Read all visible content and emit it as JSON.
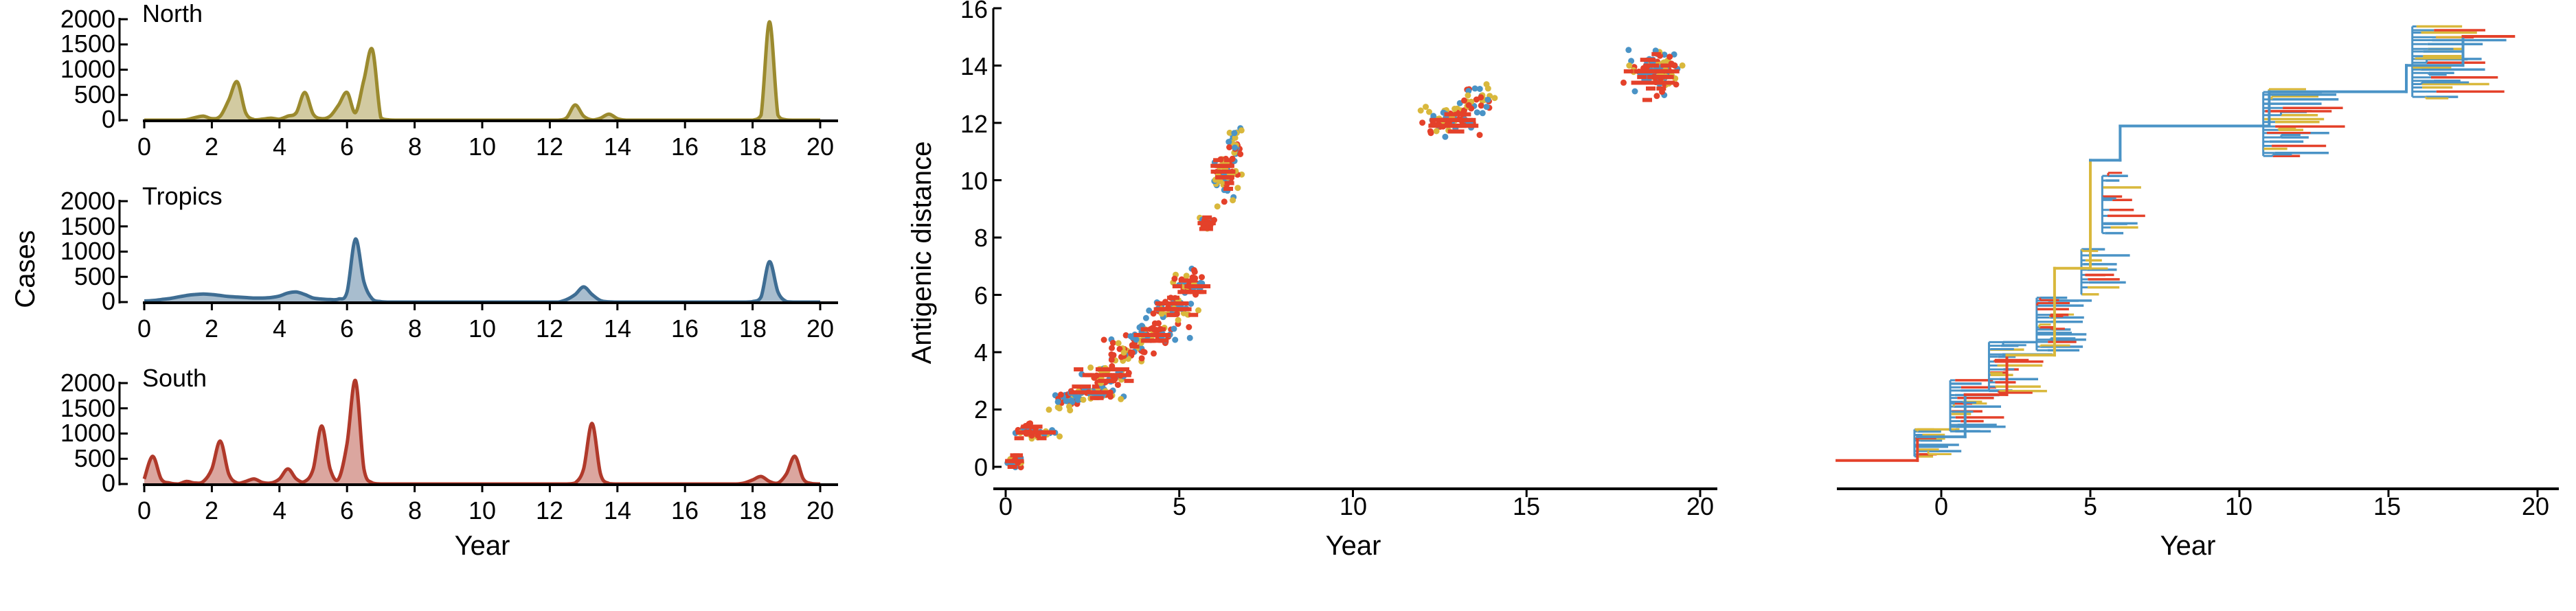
{
  "colors": {
    "north": "#9b8a2e",
    "tropics": "#3e6d93",
    "south": "#b0392a",
    "tree_blue": "#4a93c6",
    "tree_red": "#e4412a",
    "tree_yellow": "#d9b83c"
  },
  "chart_data": [
    {
      "type": "area",
      "panel": "North",
      "title": "North",
      "xlabel": "",
      "ylabel": "Cases",
      "xlim": [
        0,
        20
      ],
      "ylim": [
        0,
        2000
      ],
      "xticks": [
        "0",
        "2",
        "4",
        "6",
        "8",
        "10",
        "12",
        "14",
        "16",
        "18",
        "20"
      ],
      "yticks": [
        "0",
        "500",
        "1000",
        "1500",
        "2000"
      ],
      "x": [
        0.0,
        0.25,
        0.5,
        0.75,
        1.0,
        1.25,
        1.5,
        1.75,
        2.0,
        2.25,
        2.5,
        2.75,
        3.0,
        3.25,
        3.5,
        3.75,
        4.0,
        4.25,
        4.5,
        4.75,
        5.0,
        5.25,
        5.5,
        5.75,
        6.0,
        6.25,
        6.5,
        6.75,
        7.0,
        7.25,
        7.5,
        7.75,
        8.0,
        8.25,
        8.5,
        8.75,
        9.0,
        9.25,
        9.5,
        9.75,
        10.0,
        10.25,
        10.5,
        10.75,
        11.0,
        11.25,
        11.5,
        11.75,
        12.0,
        12.25,
        12.5,
        12.75,
        13.0,
        13.25,
        13.5,
        13.75,
        14.0,
        14.25,
        14.5,
        14.75,
        15.0,
        15.25,
        15.5,
        15.75,
        16.0,
        16.25,
        16.5,
        16.75,
        17.0,
        17.25,
        17.5,
        17.75,
        18.0,
        18.25,
        18.5,
        18.75,
        19.0,
        19.25,
        19.5,
        19.75,
        20.0
      ],
      "values": [
        0,
        0,
        0,
        0,
        0,
        10,
        50,
        80,
        30,
        80,
        400,
        760,
        150,
        10,
        20,
        40,
        20,
        80,
        150,
        550,
        120,
        30,
        80,
        300,
        550,
        150,
        800,
        1400,
        50,
        5,
        0,
        0,
        0,
        0,
        0,
        0,
        0,
        0,
        0,
        0,
        0,
        0,
        0,
        0,
        0,
        0,
        0,
        0,
        0,
        0,
        50,
        300,
        80,
        5,
        40,
        120,
        30,
        0,
        0,
        0,
        0,
        0,
        0,
        0,
        0,
        0,
        0,
        0,
        0,
        0,
        0,
        0,
        0,
        100,
        1950,
        100,
        5,
        0,
        0,
        0,
        0
      ]
    },
    {
      "type": "area",
      "panel": "Tropics",
      "title": "Tropics",
      "xlabel": "",
      "ylabel": "Cases",
      "xlim": [
        0,
        20
      ],
      "ylim": [
        0,
        2000
      ],
      "xticks": [
        "0",
        "2",
        "4",
        "6",
        "8",
        "10",
        "12",
        "14",
        "16",
        "18",
        "20"
      ],
      "yticks": [
        "0",
        "500",
        "1000",
        "1500",
        "2000"
      ],
      "x": [
        0.0,
        0.25,
        0.5,
        0.75,
        1.0,
        1.25,
        1.5,
        1.75,
        2.0,
        2.25,
        2.5,
        2.75,
        3.0,
        3.25,
        3.5,
        3.75,
        4.0,
        4.25,
        4.5,
        4.75,
        5.0,
        5.25,
        5.5,
        5.75,
        6.0,
        6.25,
        6.5,
        6.75,
        7.0,
        7.25,
        7.5,
        7.75,
        8.0,
        8.25,
        8.5,
        8.75,
        9.0,
        9.25,
        9.5,
        9.75,
        10.0,
        10.25,
        10.5,
        10.75,
        11.0,
        11.25,
        11.5,
        11.75,
        12.0,
        12.25,
        12.5,
        12.75,
        13.0,
        13.25,
        13.5,
        13.75,
        14.0,
        14.25,
        14.5,
        14.75,
        15.0,
        15.25,
        15.5,
        15.75,
        16.0,
        16.25,
        16.5,
        16.75,
        17.0,
        17.25,
        17.5,
        17.75,
        18.0,
        18.25,
        18.5,
        18.75,
        19.0,
        19.25,
        19.5,
        19.75,
        20.0
      ],
      "values": [
        20,
        30,
        50,
        70,
        100,
        130,
        150,
        160,
        150,
        130,
        110,
        100,
        90,
        80,
        80,
        90,
        120,
        180,
        200,
        150,
        80,
        60,
        50,
        60,
        200,
        1250,
        400,
        60,
        10,
        0,
        0,
        0,
        0,
        0,
        0,
        0,
        0,
        0,
        0,
        0,
        0,
        0,
        0,
        0,
        0,
        0,
        0,
        0,
        0,
        0,
        50,
        150,
        300,
        150,
        30,
        5,
        0,
        0,
        0,
        0,
        0,
        0,
        0,
        0,
        0,
        0,
        0,
        0,
        0,
        0,
        0,
        0,
        10,
        100,
        800,
        200,
        10,
        0,
        0,
        0,
        0
      ]
    },
    {
      "type": "area",
      "panel": "South",
      "title": "South",
      "xlabel": "Year",
      "ylabel": "Cases",
      "xlim": [
        0,
        20
      ],
      "ylim": [
        0,
        2000
      ],
      "xticks": [
        "0",
        "2",
        "4",
        "6",
        "8",
        "10",
        "12",
        "14",
        "16",
        "18",
        "20"
      ],
      "yticks": [
        "0",
        "500",
        "1000",
        "1500",
        "2000"
      ],
      "x": [
        0.0,
        0.25,
        0.5,
        0.75,
        1.0,
        1.25,
        1.5,
        1.75,
        2.0,
        2.25,
        2.5,
        2.75,
        3.0,
        3.25,
        3.5,
        3.75,
        4.0,
        4.25,
        4.5,
        4.75,
        5.0,
        5.25,
        5.5,
        5.75,
        6.0,
        6.25,
        6.5,
        6.75,
        7.0,
        7.25,
        7.5,
        7.75,
        8.0,
        8.25,
        8.5,
        8.75,
        9.0,
        9.25,
        9.5,
        9.75,
        10.0,
        10.25,
        10.5,
        10.75,
        11.0,
        11.25,
        11.5,
        11.75,
        12.0,
        12.25,
        12.5,
        12.75,
        13.0,
        13.25,
        13.5,
        13.75,
        14.0,
        14.25,
        14.5,
        14.75,
        15.0,
        15.25,
        15.5,
        15.75,
        16.0,
        16.25,
        16.5,
        16.75,
        17.0,
        17.25,
        17.5,
        17.75,
        18.0,
        18.25,
        18.5,
        18.75,
        19.0,
        19.25,
        19.5,
        19.75,
        20.0
      ],
      "values": [
        100,
        550,
        100,
        20,
        0,
        50,
        20,
        50,
        300,
        850,
        200,
        20,
        50,
        100,
        30,
        20,
        100,
        300,
        100,
        50,
        300,
        1150,
        300,
        100,
        800,
        2050,
        300,
        20,
        0,
        0,
        0,
        0,
        0,
        0,
        0,
        0,
        0,
        0,
        0,
        0,
        0,
        0,
        0,
        0,
        0,
        0,
        0,
        0,
        0,
        0,
        0,
        20,
        300,
        1200,
        200,
        10,
        0,
        0,
        0,
        0,
        0,
        0,
        0,
        0,
        0,
        0,
        0,
        0,
        0,
        0,
        0,
        20,
        80,
        150,
        50,
        20,
        200,
        550,
        100,
        10,
        0
      ]
    },
    {
      "type": "scatter",
      "panel": "antigenic",
      "title": "",
      "xlabel": "Year",
      "ylabel": "Antigenic distance",
      "xlim": [
        0,
        20
      ],
      "ylim": [
        0,
        16
      ],
      "xticks": [
        "0",
        "5",
        "10",
        "15",
        "20"
      ],
      "yticks": [
        "0",
        "2",
        "4",
        "6",
        "8",
        "10",
        "12",
        "14",
        "16"
      ],
      "clusters": [
        {
          "x": 0.3,
          "y": 0.2,
          "sx": 0.2,
          "sy": 0.2,
          "n": 20,
          "red": true
        },
        {
          "x": 0.9,
          "y": 1.2,
          "sx": 0.6,
          "sy": 0.2,
          "n": 40,
          "red": true
        },
        {
          "x": 1.8,
          "y": 2.3,
          "sx": 0.4,
          "sy": 0.3,
          "n": 30,
          "red": false
        },
        {
          "x": 2.5,
          "y": 2.6,
          "sx": 0.5,
          "sy": 0.2,
          "n": 45,
          "red": true
        },
        {
          "x": 3.0,
          "y": 3.2,
          "sx": 0.6,
          "sy": 0.3,
          "n": 40,
          "red": true
        },
        {
          "x": 3.6,
          "y": 4.0,
          "sx": 0.5,
          "sy": 0.4,
          "n": 40,
          "red": false
        },
        {
          "x": 4.2,
          "y": 4.6,
          "sx": 0.6,
          "sy": 0.3,
          "n": 50,
          "red": true
        },
        {
          "x": 4.8,
          "y": 5.5,
          "sx": 0.5,
          "sy": 0.4,
          "n": 50,
          "red": true
        },
        {
          "x": 5.3,
          "y": 6.3,
          "sx": 0.4,
          "sy": 0.4,
          "n": 40,
          "red": true
        },
        {
          "x": 5.8,
          "y": 8.5,
          "sx": 0.2,
          "sy": 0.2,
          "n": 15,
          "red": true
        },
        {
          "x": 6.3,
          "y": 10.3,
          "sx": 0.3,
          "sy": 0.6,
          "n": 60,
          "red": true
        },
        {
          "x": 6.6,
          "y": 11.2,
          "sx": 0.2,
          "sy": 0.5,
          "n": 25,
          "red": false
        },
        {
          "x": 12.8,
          "y": 12.1,
          "sx": 0.7,
          "sy": 0.4,
          "n": 55,
          "red": true
        },
        {
          "x": 13.6,
          "y": 12.8,
          "sx": 0.5,
          "sy": 0.4,
          "n": 30,
          "red": false
        },
        {
          "x": 18.7,
          "y": 13.8,
          "sx": 0.6,
          "sy": 0.6,
          "n": 90,
          "red": true
        }
      ]
    },
    {
      "type": "line",
      "panel": "tree",
      "title": "",
      "xlabel": "Year",
      "ylabel": "",
      "xlim": [
        -3.8,
        20.2
      ],
      "ylim": [
        0,
        17.2
      ],
      "xticks": [
        "0",
        "5",
        "10",
        "15",
        "20"
      ],
      "trunk": [
        {
          "x": -3.5,
          "y": 0.5,
          "c": "red"
        },
        {
          "x": -0.8,
          "y": 0.5,
          "c": "red"
        },
        {
          "x": -0.8,
          "y": 1.4,
          "c": "red"
        },
        {
          "x": 0.8,
          "y": 1.4,
          "c": "blue"
        },
        {
          "x": 0.8,
          "y": 3.0,
          "c": "blue"
        },
        {
          "x": 2.2,
          "y": 3.0,
          "c": "red"
        },
        {
          "x": 2.2,
          "y": 4.5,
          "c": "red"
        },
        {
          "x": 3.8,
          "y": 4.5,
          "c": "yellow"
        },
        {
          "x": 3.8,
          "y": 7.8,
          "c": "yellow"
        },
        {
          "x": 5.0,
          "y": 7.8,
          "c": "yellow"
        },
        {
          "x": 5.0,
          "y": 11.9,
          "c": "yellow"
        },
        {
          "x": 6.0,
          "y": 11.9,
          "c": "blue"
        },
        {
          "x": 6.0,
          "y": 13.2,
          "c": "blue"
        },
        {
          "x": 11.0,
          "y": 13.2,
          "c": "blue"
        },
        {
          "x": 11.0,
          "y": 14.5,
          "c": "blue"
        },
        {
          "x": 15.6,
          "y": 14.5,
          "c": "blue"
        },
        {
          "x": 15.6,
          "y": 15.5,
          "c": "blue"
        },
        {
          "x": 17.5,
          "y": 15.5,
          "c": "blue"
        },
        {
          "x": 17.5,
          "y": 16.6,
          "c": "blue"
        },
        {
          "x": 19.2,
          "y": 16.6,
          "c": "red"
        }
      ],
      "clades": [
        {
          "x0": -0.9,
          "y0": 0.6,
          "y1": 1.8,
          "len": 1.6,
          "n": 10
        },
        {
          "x0": 0.3,
          "y0": 1.6,
          "y1": 3.6,
          "len": 1.8,
          "n": 16
        },
        {
          "x0": 1.6,
          "y0": 3.1,
          "y1": 5.1,
          "len": 1.7,
          "n": 14
        },
        {
          "x0": 3.2,
          "y0": 4.6,
          "y1": 6.8,
          "len": 1.8,
          "n": 14
        },
        {
          "x0": 4.7,
          "y0": 6.8,
          "y1": 8.6,
          "len": 1.4,
          "n": 10
        },
        {
          "x0": 5.4,
          "y0": 9.0,
          "y1": 11.5,
          "len": 1.3,
          "n": 10
        },
        {
          "x0": 10.8,
          "y0": 12.0,
          "y1": 14.6,
          "len": 2.4,
          "n": 18
        },
        {
          "x0": 15.8,
          "y0": 14.3,
          "y1": 17.1,
          "len": 2.8,
          "n": 20
        }
      ]
    }
  ]
}
